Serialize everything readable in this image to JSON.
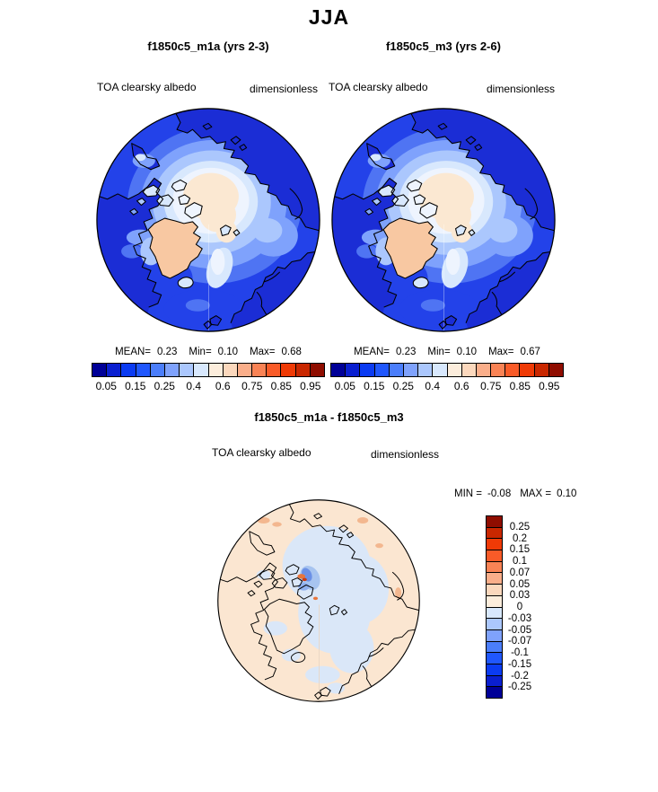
{
  "title": "JJA",
  "panels": [
    {
      "title": "f1850c5_m1a (yrs 2-3)",
      "var_label": "TOA clearsky albedo",
      "units_label": "dimensionless",
      "stats": {
        "mean_label": "MEAN=",
        "mean": "0.23",
        "min_label": "Min=",
        "min": "0.10",
        "max_label": "Max=",
        "max": "0.68"
      }
    },
    {
      "title": "f1850c5_m3 (yrs 2-6)",
      "var_label": "TOA clearsky albedo",
      "units_label": "dimensionless",
      "stats": {
        "mean_label": "MEAN=",
        "mean": "0.23",
        "min_label": "Min=",
        "min": "0.10",
        "max_label": "Max=",
        "max": "0.67"
      }
    }
  ],
  "albedo_colorbar": {
    "colors": [
      "#000097",
      "#0A1FD0",
      "#0B3BF2",
      "#2057FD",
      "#4B7EFB",
      "#7FA2FC",
      "#ABC7FD",
      "#D8E8FD",
      "#FCEDDC",
      "#FBD8BD",
      "#FAAE8A",
      "#F98355",
      "#F95B28",
      "#EF3A06",
      "#C92700",
      "#8F0D00"
    ],
    "tick_labels": [
      "0.05",
      "0.15",
      "0.25",
      "0.4",
      "0.6",
      "0.75",
      "0.85",
      "0.95"
    ]
  },
  "diff": {
    "title": "f1850c5_m1a - f1850c5_m3",
    "var_label": "TOA clearsky albedo",
    "units_label": "dimensionless",
    "minmax": {
      "min_label": "MIN =",
      "min": "-0.08",
      "max_label": "MAX =",
      "max": "0.10"
    },
    "colorbar": {
      "colors": [
        "#8F0D00",
        "#C92700",
        "#EF3A06",
        "#F95B28",
        "#F98355",
        "#FAAE8A",
        "#FBD8BD",
        "#FCEDDC",
        "#D8E8FD",
        "#ABC7FD",
        "#7FA2FC",
        "#4B7EFB",
        "#2057FD",
        "#0B3BF2",
        "#0A1FD0",
        "#000097"
      ],
      "labels": [
        "0.25",
        "0.2",
        "0.15",
        "0.1",
        "0.07",
        "0.05",
        "0.03",
        "0",
        "-0.03",
        "-0.05",
        "-0.07",
        "-0.1",
        "-0.15",
        "-0.2",
        "-0.25"
      ]
    }
  },
  "map_colors": {
    "ocean_blue": "#2342E9",
    "land_dark_blue": "#1B2DD5",
    "ice_edge_blues": [
      "#4F74F3",
      "#7FA2FC",
      "#ABC7FD",
      "#D8E8FD",
      "#EEF4FE"
    ],
    "ice_cap_cream": "#FBE8D2",
    "greenland_peach": "#F8C8A2",
    "diff_background_cream": "#FBE6D1",
    "diff_pale_blue": "#DAE7F8",
    "coastline": "#000000"
  },
  "chart_data": [
    {
      "type": "heatmap",
      "subtype": "north-polar-stereographic-map",
      "season": "JJA",
      "title": "f1850c5_m1a (yrs 2-3)",
      "variable": "TOA clearsky albedo",
      "units": "dimensionless",
      "stats": {
        "mean": 0.23,
        "min": 0.1,
        "max": 0.68
      },
      "contour_levels": [
        0.05,
        0.1,
        0.15,
        0.2,
        0.25,
        0.3,
        0.4,
        0.5,
        0.6,
        0.7,
        0.75,
        0.8,
        0.85,
        0.9,
        0.95
      ],
      "labeled_levels": [
        0.05,
        0.15,
        0.25,
        0.4,
        0.6,
        0.75,
        0.85,
        0.95
      ],
      "palette": "blue-to-red, 16 bins",
      "legend_position": "below"
    },
    {
      "type": "heatmap",
      "subtype": "north-polar-stereographic-map",
      "season": "JJA",
      "title": "f1850c5_m3 (yrs 2-6)",
      "variable": "TOA clearsky albedo",
      "units": "dimensionless",
      "stats": {
        "mean": 0.23,
        "min": 0.1,
        "max": 0.67
      },
      "contour_levels": [
        0.05,
        0.1,
        0.15,
        0.2,
        0.25,
        0.3,
        0.4,
        0.5,
        0.6,
        0.7,
        0.75,
        0.8,
        0.85,
        0.9,
        0.95
      ],
      "labeled_levels": [
        0.05,
        0.15,
        0.25,
        0.4,
        0.6,
        0.75,
        0.85,
        0.95
      ],
      "palette": "blue-to-red, 16 bins",
      "legend_position": "below"
    },
    {
      "type": "heatmap",
      "subtype": "north-polar-stereographic-map",
      "season": "JJA",
      "title": "f1850c5_m1a - f1850c5_m3",
      "variable": "TOA clearsky albedo",
      "units": "dimensionless",
      "stats": {
        "min": -0.08,
        "max": 0.1
      },
      "contour_levels": [
        -0.25,
        -0.2,
        -0.15,
        -0.1,
        -0.07,
        -0.05,
        -0.03,
        0,
        0.03,
        0.05,
        0.07,
        0.1,
        0.15,
        0.2,
        0.25
      ],
      "palette": "red-to-blue (top to bottom), 16 bins",
      "legend_position": "right"
    }
  ]
}
